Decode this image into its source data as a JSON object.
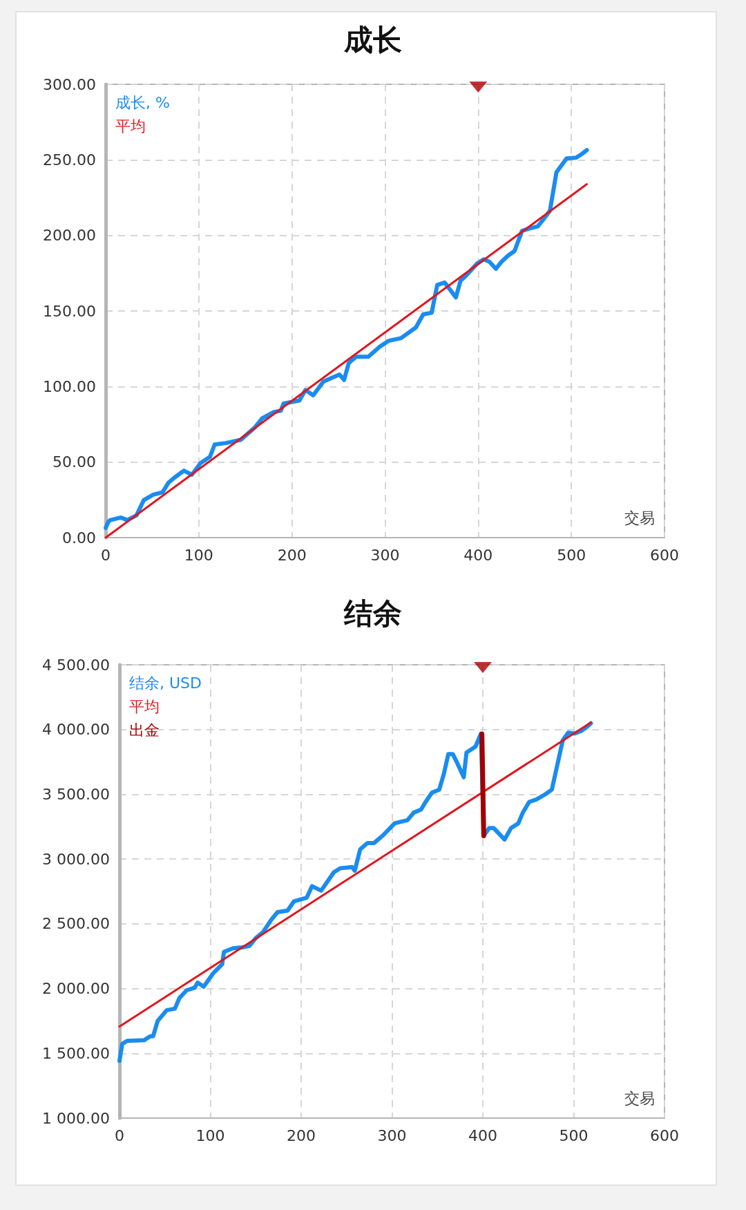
{
  "chart_data": [
    {
      "type": "line",
      "title": "成长",
      "xlabel": "交易",
      "xlim": [
        0,
        600
      ],
      "xticks": [
        0,
        100,
        200,
        300,
        400,
        500,
        600
      ],
      "ylim": [
        0,
        300
      ],
      "yticks": [
        {
          "value": 0,
          "label": "0.00"
        },
        {
          "value": 50,
          "label": "50.00"
        },
        {
          "value": 100,
          "label": "100.00"
        },
        {
          "value": 150,
          "label": "150.00"
        },
        {
          "value": 200,
          "label": "200.00"
        },
        {
          "value": 250,
          "label": "250.00"
        },
        {
          "value": 300,
          "label": "300.00"
        }
      ],
      "grid": true,
      "legend": "top left",
      "marker": "none",
      "line_style": "solid",
      "series": [
        {
          "type": "scatter",
          "color": "#b00000",
          "marker": "triangle",
          "x": [
            400
          ],
          "values": [
            300
          ]
        },
        {
          "name": "成长, %",
          "color": "#1a8cf0",
          "x": [
            0,
            3,
            5,
            16.5,
            23,
            33,
            41,
            51,
            61,
            67.6,
            74,
            84,
            92.5,
            102,
            112,
            117,
            129,
            145,
            160,
            168,
            180,
            188,
            191,
            208,
            214.5,
            222.8,
            234,
            251,
            256,
            261,
            269,
            282,
            294,
            304,
            317,
            333,
            341,
            350,
            356,
            364,
            376,
            381,
            387,
            399,
            406,
            412,
            419,
            425,
            432,
            439,
            447,
            455,
            464,
            472,
            477,
            484,
            495,
            505,
            511.6,
            516.6
          ],
          "values": [
            6.5,
            10.6,
            11.6,
            13.3,
            11.6,
            14.7,
            24.9,
            28.4,
            30,
            36.5,
            39.8,
            44.3,
            41.6,
            49.4,
            53.5,
            61.6,
            62.6,
            64.7,
            72.8,
            78.9,
            83,
            84,
            88.7,
            90.8,
            97.7,
            94.2,
            103.4,
            107.9,
            104.4,
            115.6,
            119.7,
            119.7,
            126.2,
            130.3,
            132,
            139,
            147.8,
            148.8,
            167.2,
            168.8,
            159,
            170,
            173.4,
            181.5,
            184.2,
            182.6,
            177.9,
            182.6,
            186.6,
            189.7,
            203,
            204.6,
            206,
            212.2,
            216.3,
            241.8,
            251,
            251.4,
            254,
            256.5
          ]
        },
        {
          "name": "平均",
          "color": "#e0161e",
          "x": [
            0,
            516.6
          ],
          "values": [
            0,
            233.9
          ]
        }
      ]
    },
    {
      "type": "line",
      "title": "结余",
      "xlabel": "交易",
      "xlim": [
        0,
        600
      ],
      "xticks": [
        0,
        100,
        200,
        300,
        400,
        500,
        600
      ],
      "ylim": [
        1000,
        4500
      ],
      "yticks": [
        {
          "value": 1000,
          "label": "1 000.00"
        },
        {
          "value": 1500,
          "label": "1 500.00"
        },
        {
          "value": 2000,
          "label": "2 000.00"
        },
        {
          "value": 2500,
          "label": "2 500.00"
        },
        {
          "value": 3000,
          "label": "3 000.00"
        },
        {
          "value": 3500,
          "label": "3 500.00"
        },
        {
          "value": 4000,
          "label": "4 000.00"
        },
        {
          "value": 4500,
          "label": "4 500.00"
        }
      ],
      "grid": true,
      "legend": "top left",
      "marker": "none",
      "line_style": "solid",
      "series": [
        {
          "type": "scatter",
          "color": "#b00000",
          "marker": "triangle",
          "x": [
            400
          ],
          "values": [
            4500
          ]
        },
        {
          "name": "结余, USD",
          "color": "#1a8cf0",
          "x": [
            0,
            3,
            8.4,
            27,
            34,
            37,
            42,
            52,
            61,
            66,
            74,
            82.6,
            86,
            92.7,
            103,
            113,
            115,
            125,
            135,
            143,
            150,
            158,
            167,
            174,
            185,
            192,
            206,
            212,
            222,
            236,
            243,
            256,
            259,
            265,
            273,
            280,
            290,
            303,
            317,
            324,
            332,
            337,
            344,
            352,
            357,
            362,
            367,
            372,
            379,
            382,
            387,
            392,
            398,
            401,
            407,
            412,
            424,
            431,
            439,
            444,
            451,
            459,
            469,
            476,
            488,
            494,
            501,
            508,
            513,
            519
          ],
          "values": [
            1442,
            1573,
            1596,
            1601,
            1632,
            1632,
            1750,
            1833,
            1845,
            1928,
            1987,
            2006,
            2046,
            2015,
            2117,
            2188,
            2283,
            2311,
            2318,
            2330,
            2389,
            2436,
            2531,
            2590,
            2602,
            2673,
            2701,
            2791,
            2756,
            2898,
            2929,
            2938,
            2910,
            3075,
            3123,
            3123,
            3182,
            3276,
            3300,
            3359,
            3382,
            3441,
            3513,
            3536,
            3655,
            3810,
            3810,
            3739,
            3632,
            3822,
            3845,
            3869,
            3969,
            3180,
            3239,
            3239,
            3151,
            3239,
            3275,
            3358,
            3441,
            3460,
            3501,
            3536,
            3917,
            3976,
            3969,
            3988,
            4012,
            4048
          ]
        },
        {
          "name": "平均",
          "color": "#e0161e",
          "x": [
            0,
            519
          ],
          "values": [
            1707,
            4055
          ]
        },
        {
          "name": "出金",
          "color": "#a00000",
          "x": [
            399,
            401
          ],
          "values": [
            3965,
            3180
          ]
        }
      ]
    }
  ]
}
